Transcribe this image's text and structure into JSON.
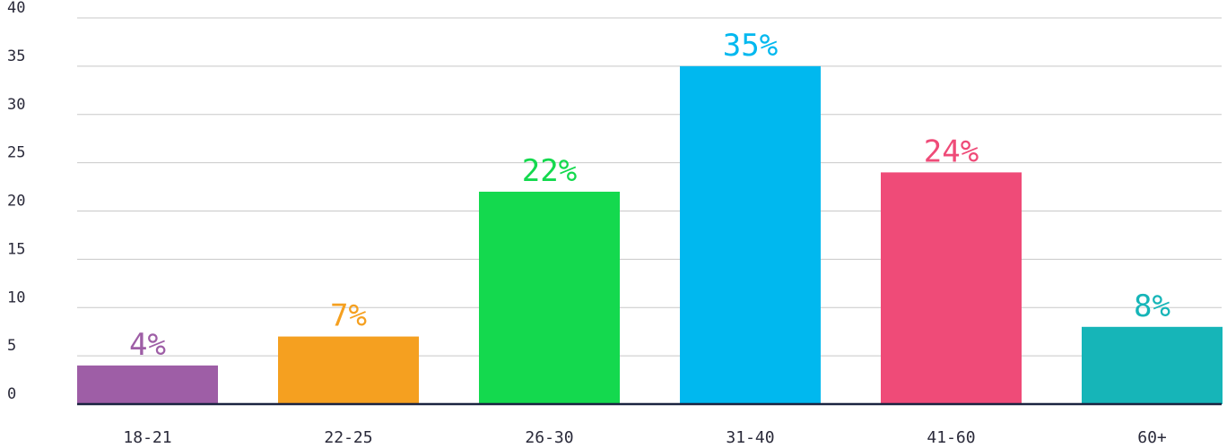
{
  "chart_data": {
    "type": "bar",
    "categories": [
      "18-21",
      "22-25",
      "26-30",
      "31-40",
      "41-60",
      "60+"
    ],
    "values": [
      4,
      7,
      22,
      35,
      24,
      8
    ],
    "data_labels": [
      "4%",
      "7%",
      "22%",
      "35%",
      "24%",
      "8%"
    ],
    "colors": [
      "#9e5ea6",
      "#f5a020",
      "#14d94e",
      "#00b8ef",
      "#ef4b78",
      "#16b5b8"
    ],
    "ylim": [
      0,
      40
    ],
    "yticks": [
      "0",
      "5",
      "10",
      "15",
      "20",
      "25",
      "30",
      "35",
      "40"
    ],
    "grid": true,
    "title": "",
    "xlabel": "",
    "ylabel": ""
  }
}
